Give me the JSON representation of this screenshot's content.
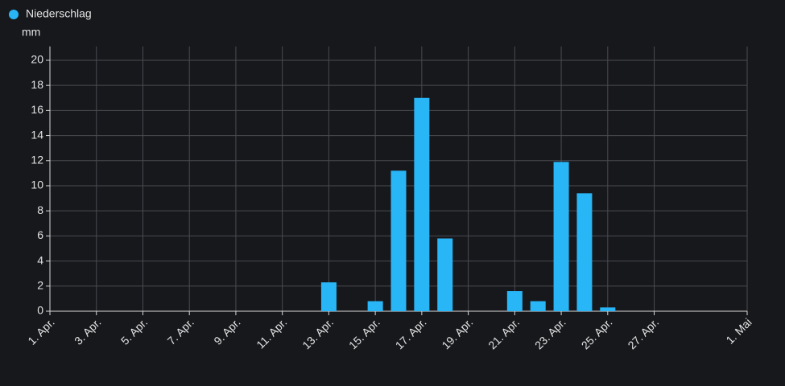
{
  "chart_data": {
    "type": "bar",
    "y_label": "mm",
    "categories": [
      "1. Apr.",
      null,
      "3. Apr.",
      null,
      "5. Apr.",
      null,
      "7. Apr.",
      null,
      "9. Apr.",
      null,
      "11. Apr.",
      null,
      "13. Apr.",
      null,
      "15. Apr.",
      null,
      "17. Apr.",
      null,
      "19. Apr.",
      null,
      "21. Apr.",
      null,
      "23. Apr.",
      null,
      "25. Apr.",
      null,
      "27. Apr.",
      null,
      null,
      null,
      "1. Mai"
    ],
    "series": [
      {
        "name": "Niederschlag",
        "color": "#29b6f6",
        "values": [
          0,
          0,
          0,
          0,
          0,
          0,
          0,
          0,
          0,
          0,
          0,
          0,
          2.3,
          0,
          0.8,
          11.2,
          17,
          5.8,
          0,
          0,
          1.6,
          0.8,
          11.9,
          9.4,
          0.3,
          0,
          0,
          0,
          0,
          0,
          null
        ]
      }
    ],
    "ylim": [
      0,
      21.1
    ],
    "yticks": [
      0,
      2,
      4,
      6,
      8,
      10,
      12,
      14,
      16,
      18,
      20
    ],
    "grid": true
  }
}
